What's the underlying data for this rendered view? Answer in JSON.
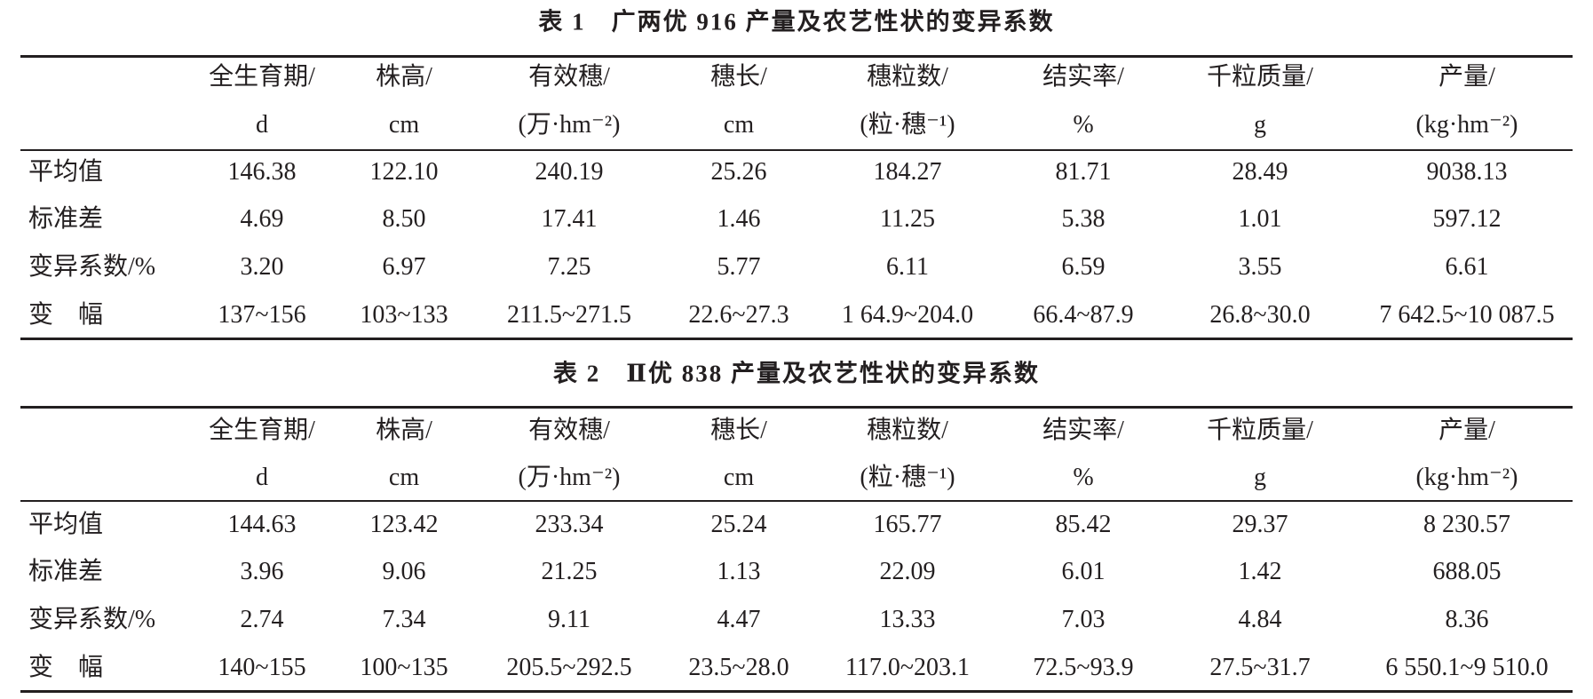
{
  "tables": [
    {
      "title": "表 1　广两优 916 产量及农艺性状的变异系数",
      "header": [
        [
          "全生育期/",
          "d"
        ],
        [
          "株高/",
          "cm"
        ],
        [
          "有效穗/",
          "(万·hm⁻²)"
        ],
        [
          "穗长/",
          "cm"
        ],
        [
          "穗粒数/",
          "(粒·穗⁻¹)"
        ],
        [
          "结实率/",
          "%"
        ],
        [
          "千粒质量/",
          "g"
        ],
        [
          "产量/",
          "(kg·hm⁻²)"
        ]
      ],
      "rows": [
        [
          "平均值",
          "146.38",
          "122.10",
          "240.19",
          "25.26",
          "184.27",
          "81.71",
          "28.49",
          "9038.13"
        ],
        [
          "标准差",
          "4.69",
          "8.50",
          "17.41",
          "1.46",
          "11.25",
          "5.38",
          "1.01",
          "597.12"
        ],
        [
          "变异系数/%",
          "3.20",
          "6.97",
          "7.25",
          "5.77",
          "6.11",
          "6.59",
          "3.55",
          "6.61"
        ],
        [
          "变　幅",
          "137~156",
          "103~133",
          "211.5~271.5",
          "22.6~27.3",
          "1 64.9~204.0",
          "66.4~87.9",
          "26.8~30.0",
          "7 642.5~10 087.5"
        ]
      ]
    },
    {
      "title": "表 2　Ⅱ优 838 产量及农艺性状的变异系数",
      "header": [
        [
          "全生育期/",
          "d"
        ],
        [
          "株高/",
          "cm"
        ],
        [
          "有效穗/",
          "(万·hm⁻²)"
        ],
        [
          "穗长/",
          "cm"
        ],
        [
          "穗粒数/",
          "(粒·穗⁻¹)"
        ],
        [
          "结实率/",
          "%"
        ],
        [
          "千粒质量/",
          "g"
        ],
        [
          "产量/",
          "(kg·hm⁻²)"
        ]
      ],
      "rows": [
        [
          "平均值",
          "144.63",
          "123.42",
          "233.34",
          "25.24",
          "165.77",
          "85.42",
          "29.37",
          "8 230.57"
        ],
        [
          "标准差",
          "3.96",
          "9.06",
          "21.25",
          "1.13",
          "22.09",
          "6.01",
          "1.42",
          "688.05"
        ],
        [
          "变异系数/%",
          "2.74",
          "7.34",
          "9.11",
          "4.47",
          "13.33",
          "7.03",
          "4.84",
          "8.36"
        ],
        [
          "变　幅",
          "140~155",
          "100~135",
          "205.5~292.5",
          "23.5~28.0",
          "117.0~203.1",
          "72.5~93.9",
          "27.5~31.7",
          "6 550.1~9 510.0"
        ]
      ]
    }
  ]
}
